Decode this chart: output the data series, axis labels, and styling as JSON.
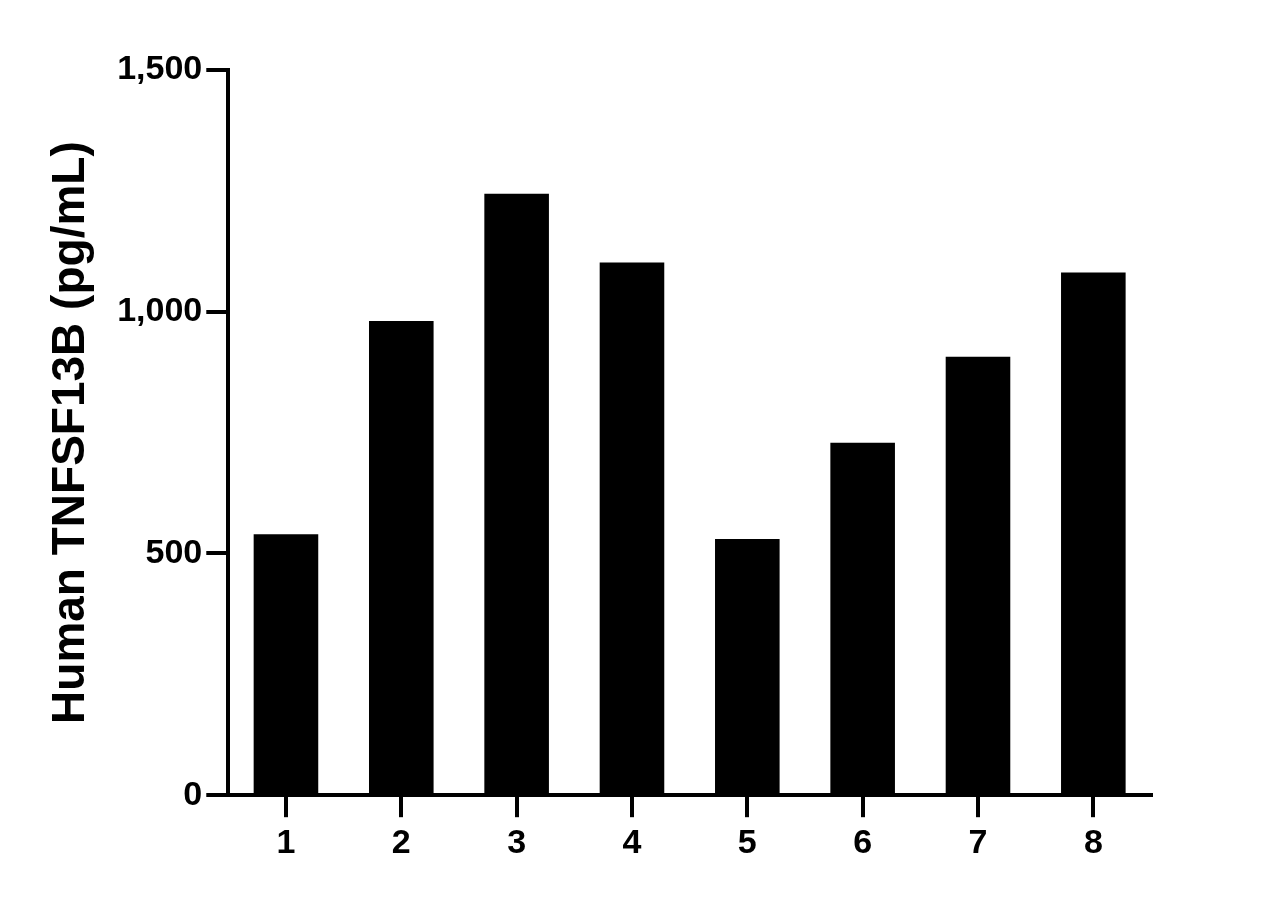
{
  "chart_data": {
    "type": "bar",
    "ylabel": "Human TNFSF13B (pg/mL)",
    "categories": [
      "1",
      "2",
      "3",
      "4",
      "5",
      "6",
      "7",
      "8"
    ],
    "values": [
      540,
      981,
      1244,
      1102,
      530,
      729,
      907,
      1081
    ],
    "color": "#000000",
    "ylim": [
      0,
      1500
    ],
    "yticks": [
      0,
      500,
      {
        "value": 1000,
        "label": "1,000"
      },
      {
        "value": 1500,
        "label": "1,500"
      }
    ],
    "grid": false,
    "legend": false
  }
}
